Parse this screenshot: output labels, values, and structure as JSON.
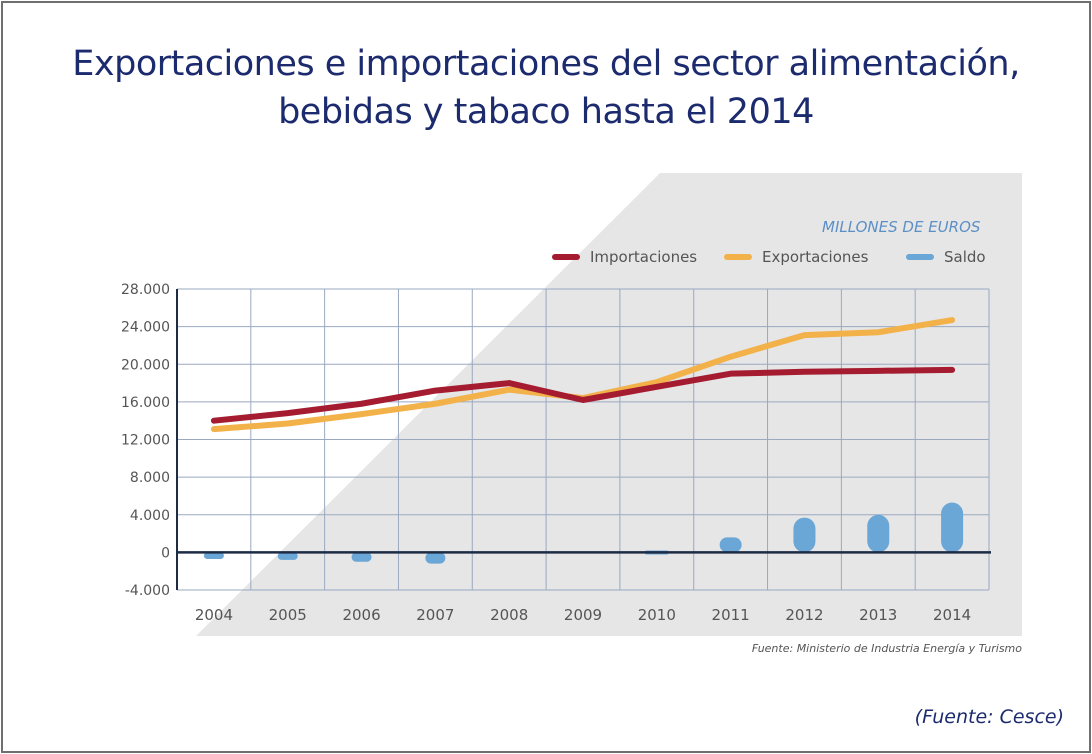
{
  "title_lines": [
    "Exportaciones e importaciones del sector alimentación,",
    "bebidas y tabaco hasta el 2014"
  ],
  "footer_credit": "(Fuente: Cesce)",
  "chart_data": {
    "type": "line",
    "title": "Exportaciones e importaciones del sector alimentación, bebidas y tabaco hasta el 2014",
    "units": "MILLONES DE EUROS",
    "source": "Fuente:  Ministerio de Industria Energía y Turismo",
    "categories": [
      "2004",
      "2005",
      "2006",
      "2007",
      "2008",
      "2009",
      "2010",
      "2011",
      "2012",
      "2013",
      "2014"
    ],
    "ylim": [
      -4000,
      28000
    ],
    "yticks": [
      28000,
      24000,
      20000,
      16000,
      12000,
      8000,
      4000,
      0,
      -4000
    ],
    "ytick_labels": [
      "28.000",
      "24.000",
      "20.000",
      "16.000",
      "12.000",
      "8.000",
      "4.000",
      "0",
      "-4.000"
    ],
    "grid": true,
    "legend_position": "top-right",
    "series": [
      {
        "name": "Importaciones",
        "color": "#a51c30",
        "kind": "line",
        "values": [
          14000,
          14800,
          15800,
          17200,
          18000,
          16200,
          17600,
          19000,
          19200,
          19300,
          19400
        ]
      },
      {
        "name": "Exportaciones",
        "color": "#f3b14a",
        "kind": "line",
        "values": [
          13100,
          13700,
          14700,
          15800,
          17300,
          16400,
          18100,
          20800,
          23100,
          23400,
          24700
        ]
      },
      {
        "name": "Saldo",
        "color": "#6aa6d6",
        "kind": "bar",
        "values": [
          -700,
          -800,
          -1000,
          -1200,
          null,
          null,
          200,
          1600,
          3700,
          4000,
          5300
        ]
      }
    ]
  }
}
